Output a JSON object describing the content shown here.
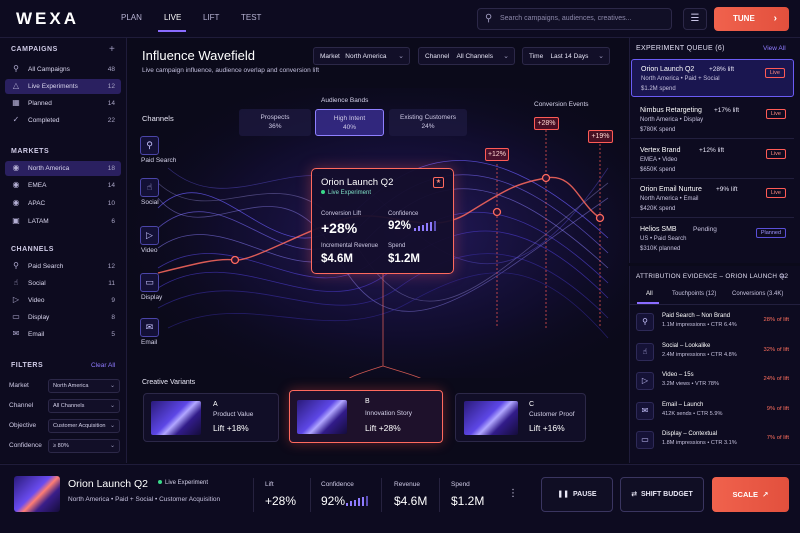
{
  "app": {
    "logo": "WEXA"
  },
  "nav": {
    "tabs": [
      "PLAN",
      "LIVE",
      "LIFT",
      "TEST"
    ],
    "active": "LIVE"
  },
  "search": {
    "placeholder": "Search campaigns, audiences, creatives..."
  },
  "header": {
    "tune_label": "TUNE"
  },
  "sidebar": {
    "campaigns": {
      "title": "CAMPAIGNS",
      "items": [
        {
          "label": "All Campaigns",
          "count": "48",
          "icon": "search-icon"
        },
        {
          "label": "Live Experiments",
          "count": "12",
          "icon": "flask-icon"
        },
        {
          "label": "Planned",
          "count": "14",
          "icon": "calendar-icon"
        },
        {
          "label": "Completed",
          "count": "22",
          "icon": "check-icon"
        }
      ]
    },
    "markets": {
      "title": "MARKETS",
      "items": [
        {
          "label": "North America",
          "count": "18"
        },
        {
          "label": "EMEA",
          "count": "14"
        },
        {
          "label": "APAC",
          "count": "10"
        },
        {
          "label": "LATAM",
          "count": "6"
        }
      ]
    },
    "channels": {
      "title": "CHANNELS",
      "items": [
        {
          "label": "Paid Search",
          "count": "12"
        },
        {
          "label": "Social",
          "count": "11"
        },
        {
          "label": "Video",
          "count": "9"
        },
        {
          "label": "Display",
          "count": "8"
        },
        {
          "label": "Email",
          "count": "5"
        }
      ]
    },
    "filters": {
      "title": "FILTERS",
      "clear_label": "Clear All",
      "rows": [
        {
          "label": "Market",
          "value": "North America"
        },
        {
          "label": "Channel",
          "value": "All Channels"
        },
        {
          "label": "Objective",
          "value": "Customer Acquisition"
        },
        {
          "label": "Confidence",
          "value": "≥ 80%"
        }
      ]
    }
  },
  "main": {
    "title": "Influence Wavefield",
    "subtitle": "Live campaign influence, audience overlap and conversion lift",
    "dropdowns": [
      {
        "label": "Market",
        "value": "North America"
      },
      {
        "label": "Channel",
        "value": "All Channels"
      },
      {
        "label": "Time",
        "value": "Last 14 Days"
      }
    ],
    "channels_title": "Channels",
    "channels": [
      "Paid Search",
      "Social",
      "Video",
      "Display",
      "Email"
    ],
    "audience_bands_title": "Audience Bands",
    "bands": [
      {
        "name": "Prospects",
        "pct": "36%"
      },
      {
        "name": "High Intent",
        "pct": "40%"
      },
      {
        "name": "Existing Customers",
        "pct": "24%"
      }
    ],
    "conversion_events_title": "Conversion Events",
    "events": [
      "+12%",
      "+28%",
      "+19%"
    ],
    "popover": {
      "title": "Orion Launch Q2",
      "badge": "Live Experiment",
      "conv_lift_label": "Conversion Lift",
      "conv_lift": "+28%",
      "confidence_label": "Confidence",
      "confidence": "92%",
      "inc_rev_label": "Incremental Revenue",
      "inc_rev": "$4.6M",
      "spend_label": "Spend",
      "spend": "$1.2M"
    },
    "creative_title": "Creative Variants",
    "creatives": [
      {
        "key": "A",
        "name": "Product Value",
        "lift": "Lift +18%"
      },
      {
        "key": "B",
        "name": "Innovation Story",
        "lift": "Lift +28%"
      },
      {
        "key": "C",
        "name": "Customer Proof",
        "lift": "Lift +16%"
      }
    ]
  },
  "queue": {
    "title": "EXPERIMENT QUEUE (6)",
    "view_all": "View All",
    "items": [
      {
        "name": "Orion Launch Q2",
        "lift": "+28% lift",
        "d1": "North America  •  Paid + Social",
        "d2": "$1.2M spend",
        "status": "Live"
      },
      {
        "name": "Nimbus Retargeting",
        "lift": "+17% lift",
        "d1": "North America  •  Display",
        "d2": "$780K spend",
        "status": "Live"
      },
      {
        "name": "Vertex Brand",
        "lift": "+12% lift",
        "d1": "EMEA  •  Video",
        "d2": "$650K spend",
        "status": "Live"
      },
      {
        "name": "Orion Email Nurture",
        "lift": "+9% lift",
        "d1": "North America  •  Email",
        "d2": "$420K spend",
        "status": "Live"
      },
      {
        "name": "Helios SMB",
        "lift": "Pending",
        "d1": "US  •  Paid Search",
        "d2": "$310K planned",
        "status": "Planned"
      }
    ]
  },
  "attribution": {
    "title": "ATTRIBUTION EVIDENCE – ORION LAUNCH Q2",
    "tabs": [
      "All",
      "Touchpoints (12)",
      "Conversions (3.4K)"
    ],
    "rows": [
      {
        "name": "Paid Search – Non Brand",
        "detail": "1.1M impressions  •  CTR 6.4%",
        "pct": "28% of lift"
      },
      {
        "name": "Social – Lookalike",
        "detail": "2.4M impressions  •  CTR 4.8%",
        "pct": "32% of lift"
      },
      {
        "name": "Video – 15s",
        "detail": "3.2M views  •  VTR 78%",
        "pct": "24% of lift"
      },
      {
        "name": "Email – Launch",
        "detail": "412K sends  •  CTR 5.9%",
        "pct": "9% of lift"
      },
      {
        "name": "Display – Contextual",
        "detail": "1.8M impressions  •  CTR 3.1%",
        "pct": "7% of lift"
      }
    ]
  },
  "bottom": {
    "title": "Orion Launch Q2",
    "badge": "Live Experiment",
    "subtitle": "North America  •  Paid + Social  •  Customer Acquisition",
    "metrics": [
      {
        "label": "Lift",
        "value": "+28%"
      },
      {
        "label": "Confidence",
        "value": "92%"
      },
      {
        "label": "Revenue",
        "value": "$4.6M"
      },
      {
        "label": "Spend",
        "value": "$1.2M"
      }
    ],
    "pause_label": "PAUSE",
    "shift_label": "SHIFT BUDGET",
    "scale_label": "SCALE"
  },
  "colors": {
    "accent": "#8a6cff",
    "cta": "#f0624d",
    "live": "#39d98a"
  }
}
